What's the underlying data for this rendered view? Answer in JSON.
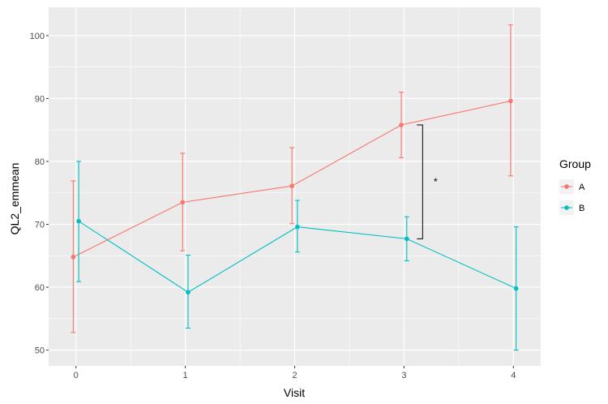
{
  "chart_data": {
    "type": "line",
    "xlabel": "Visit",
    "ylabel": "QL2_emmean",
    "x": [
      0,
      1,
      2,
      3,
      4
    ],
    "x_tick_labels": [
      "0",
      "1",
      "2",
      "3",
      "4"
    ],
    "y_ticks": [
      50,
      60,
      70,
      80,
      90,
      100
    ],
    "y_tick_labels": [
      "50",
      "60",
      "70",
      "80",
      "90",
      "100"
    ],
    "xlim": [
      -0.25,
      4.25
    ],
    "ylim": [
      47.5,
      104.5
    ],
    "grid": true,
    "legend": {
      "title": "Group",
      "placement": "right"
    },
    "series": [
      {
        "name": "A",
        "color": "#F8766D",
        "values": [
          64.8,
          73.5,
          76.1,
          85.8,
          89.6
        ],
        "lower": [
          52.8,
          65.8,
          70.1,
          80.6,
          77.7
        ],
        "upper": [
          76.9,
          81.3,
          82.2,
          91.0,
          101.7
        ]
      },
      {
        "name": "B",
        "color": "#00BFC4",
        "values": [
          70.5,
          59.2,
          69.6,
          67.7,
          59.8
        ],
        "lower": [
          60.9,
          53.5,
          65.6,
          64.2,
          50.0
        ],
        "upper": [
          80.0,
          65.1,
          73.8,
          71.2,
          69.6
        ]
      }
    ],
    "annotations": [
      {
        "text": "*",
        "x": 3,
        "y_range": [
          67.7,
          85.8
        ]
      }
    ]
  }
}
